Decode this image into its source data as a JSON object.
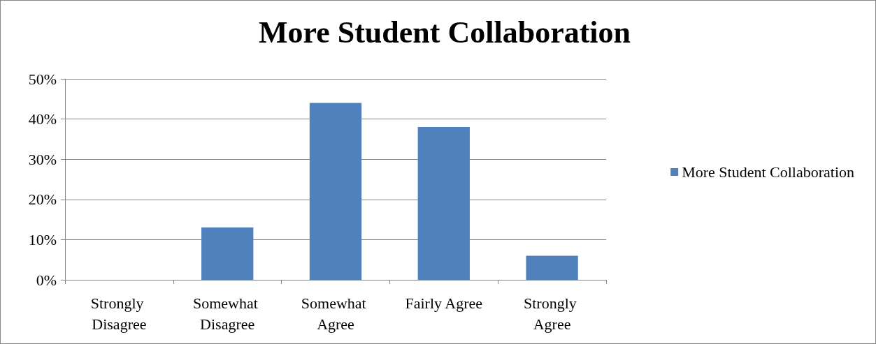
{
  "chart_data": {
    "type": "bar",
    "title": "More Student Collaboration",
    "categories": [
      "Strongly Disagree",
      "Somewhat Disagree",
      "Somewhat Agree",
      "Fairly Agree",
      "Strongly Agree"
    ],
    "series": [
      {
        "name": "More Student Collaboration",
        "color": "#4f81bd",
        "values": [
          0,
          13,
          44,
          38,
          6
        ]
      }
    ],
    "ylim": [
      0,
      50
    ],
    "yticks": [
      {
        "value": 0,
        "label": "0%"
      },
      {
        "value": 10,
        "label": "10%"
      },
      {
        "value": 20,
        "label": "20%"
      },
      {
        "value": 30,
        "label": "30%"
      },
      {
        "value": 40,
        "label": "40%"
      },
      {
        "value": 50,
        "label": "50%"
      }
    ],
    "grid": "y",
    "legend": "right"
  }
}
